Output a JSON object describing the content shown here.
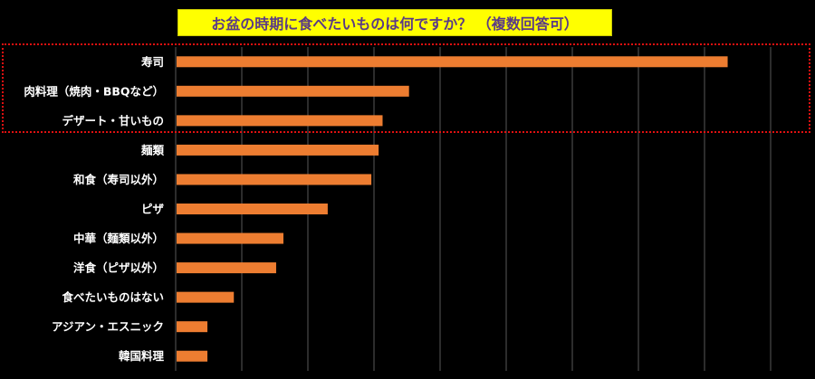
{
  "title": "お盆の時期に食べたいものは何ですか？ （複数回答可）",
  "colors": {
    "background": "#000000",
    "bar": "#ed7d31",
    "grid": "#595959",
    "title_bg": "#ffff00",
    "title_text": "#5a3a86",
    "highlight": "#e01010"
  },
  "chart_data": {
    "type": "bar",
    "orientation": "horizontal",
    "title": "お盆の時期に食べたいものは何ですか？ （複数回答可）",
    "xlabel": "",
    "ylabel": "",
    "xlim": [
      0,
      90
    ],
    "grid": true,
    "categories": [
      "寿司",
      "肉料理（焼肉・BBQなど）",
      "デザート・甘いもの",
      "麺類",
      "和食（寿司以外）",
      "ピザ",
      "中華（麺類以外）",
      "洋食（ピザ以外）",
      "食べたいものはない",
      "アジアン・エスニック",
      "韓国料理"
    ],
    "values": [
      83.5,
      35.3,
      31.3,
      30.7,
      29.6,
      23.0,
      16.3,
      15.2,
      8.8,
      4.8,
      4.8
    ],
    "highlighted_categories": [
      "寿司",
      "肉料理（焼肉・BBQなど）",
      "デザート・甘いもの"
    ]
  }
}
